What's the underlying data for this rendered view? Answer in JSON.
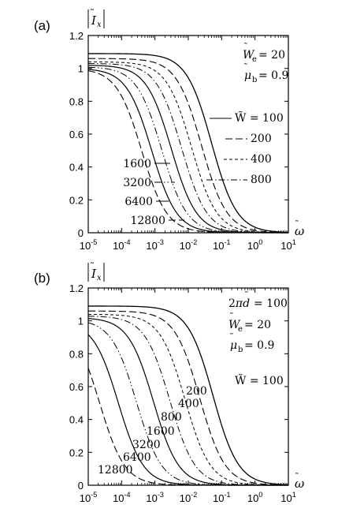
{
  "chart_data": [
    {
      "type": "line",
      "panel_label": "(a)",
      "ylabel": "|Ĩ_x|",
      "xlabel": "ω̃",
      "xscale": "log",
      "xlim": [
        1e-05,
        10
      ],
      "ylim": [
        0,
        1.2
      ],
      "xtick_exponents": [
        "-5",
        "-4",
        "-3",
        "-2",
        "-1",
        "0",
        "1"
      ],
      "yticks": [
        "0",
        "0.2",
        "0.4",
        "0.6",
        "0.8",
        "1",
        "1.2"
      ],
      "params": [
        {
          "sym": "W",
          "sub": "e",
          "value": "= 20"
        },
        {
          "sym": "μ",
          "sub": "b",
          "value": "= 0.9"
        }
      ],
      "series_labels": [
        {
          "text": "W̃ = 100",
          "W": 100
        },
        {
          "text": "200",
          "W": 200
        },
        {
          "text": "400",
          "W": 400
        },
        {
          "text": "800",
          "W": 800
        },
        {
          "text": "1600",
          "W": 1600
        },
        {
          "text": "3200",
          "W": 3200
        },
        {
          "text": "6400",
          "W": 6400
        },
        {
          "text": "12800",
          "W": 12800
        }
      ],
      "series": [
        {
          "name": "W̃ = 100",
          "plateau": 1.09,
          "x_half": 0.05
        },
        {
          "name": "200",
          "plateau": 1.06,
          "x_half": 0.025
        },
        {
          "name": "400",
          "plateau": 1.04,
          "x_half": 0.0125
        },
        {
          "name": "800",
          "plateau": 1.03,
          "x_half": 0.0063
        },
        {
          "name": "1600",
          "plateau": 1.02,
          "x_half": 0.0031
        },
        {
          "name": "3200",
          "plateau": 1.01,
          "x_half": 0.0016
        },
        {
          "name": "6400",
          "plateau": 1.0,
          "x_half": 0.0008
        },
        {
          "name": "12800",
          "plateau": 1.0,
          "x_half": 0.0004
        }
      ]
    },
    {
      "type": "line",
      "panel_label": "(b)",
      "ylabel": "|Ĩ_x|",
      "xlabel": "ω̃",
      "xscale": "log",
      "xlim": [
        1e-05,
        10
      ],
      "ylim": [
        0,
        1.2
      ],
      "xtick_exponents": [
        "-5",
        "-4",
        "-3",
        "-2",
        "-1",
        "0",
        "1"
      ],
      "yticks": [
        "0",
        "0.2",
        "0.4",
        "0.6",
        "0.8",
        "1",
        "1.2"
      ],
      "params": [
        {
          "sym": "2πd̃",
          "sub": "",
          "value": "= 100"
        },
        {
          "sym": "W",
          "sub": "e",
          "value": "= 20"
        },
        {
          "sym": "μ",
          "sub": "b",
          "value": "= 0.9"
        }
      ],
      "series_labels": [
        {
          "text": "W̃ = 100",
          "W": 100
        },
        {
          "text": "200",
          "W": 200
        },
        {
          "text": "400",
          "W": 400
        },
        {
          "text": "800",
          "W": 800
        },
        {
          "text": "1600",
          "W": 1600
        },
        {
          "text": "3200",
          "W": 3200
        },
        {
          "text": "6400",
          "W": 6400
        },
        {
          "text": "12800",
          "W": 12800
        }
      ],
      "series": [
        {
          "name": "W̃ = 100",
          "plateau": 1.09,
          "x_half": 0.055
        },
        {
          "name": "200",
          "plateau": 1.06,
          "x_half": 0.022
        },
        {
          "name": "400",
          "plateau": 1.04,
          "x_half": 0.008
        },
        {
          "name": "800",
          "plateau": 1.03,
          "x_half": 0.0028
        },
        {
          "name": "1600",
          "plateau": 1.02,
          "x_half": 0.0009
        },
        {
          "name": "3200",
          "plateau": 1.01,
          "x_half": 0.00028
        },
        {
          "name": "6400",
          "plateau": 1.0,
          "x_half": 8e-05
        },
        {
          "name": "12800",
          "plateau": 1.0,
          "x_half": 2.2e-05
        }
      ]
    }
  ]
}
